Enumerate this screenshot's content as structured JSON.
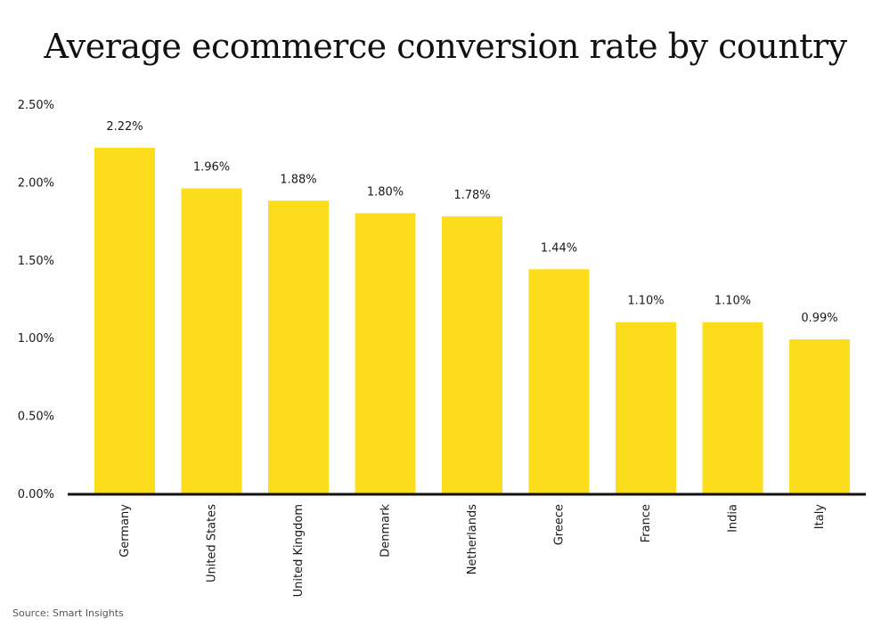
{
  "colors": {
    "bar": "#FCDD1B",
    "axis": "#111111",
    "text": "#1a1a1a"
  },
  "source_note": "Source: Smart Insights",
  "chart_data": {
    "type": "bar",
    "title": "Average ecommerce conversion rate by country",
    "xlabel": "",
    "ylabel": "",
    "ylim": [
      0,
      2.5
    ],
    "y_ticks": [
      0,
      0.5,
      1.0,
      1.5,
      2.0,
      2.5
    ],
    "y_tick_labels": [
      "0.00%",
      "0.50%",
      "1.00%",
      "1.50%",
      "2.00%",
      "2.50%"
    ],
    "grid": false,
    "categories": [
      "Germany",
      "United States",
      "United Kingdom",
      "Denmark",
      "Netherlands",
      "Greece",
      "France",
      "India",
      "Italy"
    ],
    "values": [
      2.22,
      1.96,
      1.88,
      1.8,
      1.78,
      1.44,
      1.1,
      1.1,
      0.99
    ],
    "value_labels": [
      "2.22%",
      "1.96%",
      "1.88%",
      "1.80%",
      "1.78%",
      "1.44%",
      "1.10%",
      "1.10%",
      "0.99%"
    ]
  }
}
